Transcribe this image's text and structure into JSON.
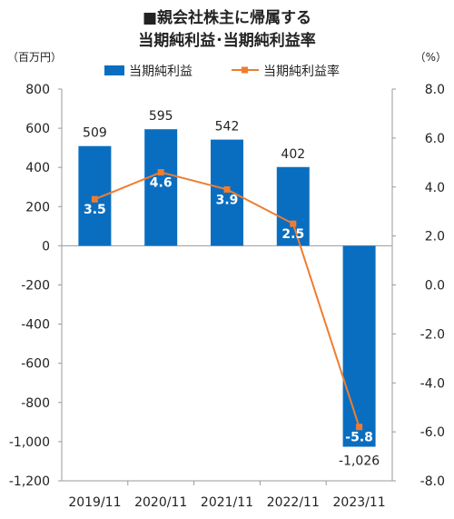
{
  "chart_data": {
    "type": "bar",
    "title_line1": "■親会社株主に帰属する",
    "title_line2": "当期純利益･当期純利益率",
    "left_unit": "（百万円）",
    "right_unit": "（%）",
    "categories": [
      "2019/11",
      "2020/11",
      "2021/11",
      "2022/11",
      "2023/11"
    ],
    "series": [
      {
        "name": "当期純利益",
        "type": "bar",
        "axis": "left",
        "values": [
          509,
          595,
          542,
          402,
          -1026
        ],
        "labels": [
          "509",
          "595",
          "542",
          "402",
          "-1,026"
        ]
      },
      {
        "name": "当期純利益率",
        "type": "line",
        "axis": "right",
        "values": [
          3.5,
          4.6,
          3.9,
          2.5,
          -5.8
        ],
        "labels": [
          "3.5",
          "4.6",
          "3.9",
          "2.5",
          "-5.8"
        ]
      }
    ],
    "left_axis": {
      "ylim": [
        -1200,
        800
      ],
      "ticks": [
        800,
        600,
        400,
        200,
        0,
        -200,
        -400,
        -600,
        -800,
        -1000,
        -1200
      ],
      "tick_labels": [
        "800",
        "600",
        "400",
        "200",
        "0",
        "-200",
        "-400",
        "-600",
        "-800",
        "-1,000",
        "-1,200"
      ]
    },
    "right_axis": {
      "ylim": [
        -8,
        8
      ],
      "ticks": [
        8,
        6,
        4,
        2,
        0,
        -2,
        -4,
        -6,
        -8
      ],
      "tick_labels": [
        "8.0",
        "6.0",
        "4.0",
        "2.0",
        "0.0",
        "-2.0",
        "-4.0",
        "-6.0",
        "-8.0"
      ]
    },
    "grid": false,
    "legend_position": "top",
    "colors": {
      "bar": "#0a6ec0",
      "line": "#ee7d31",
      "text": "#222222",
      "axis": "#999999"
    }
  }
}
